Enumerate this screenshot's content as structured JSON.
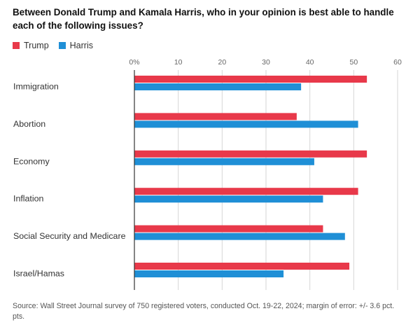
{
  "title": "Between Donald Trump and Kamala Harris, who in your opinion is best able to handle each of the following issues?",
  "source": "Source: Wall Street Journal survey of 750 registered voters, conducted Oct. 19-22, 2024; margin of error: +/- 3.6 pct. pts.",
  "colors": {
    "trump": "#e8394a",
    "harris": "#1f8fd6",
    "axis": "#333333",
    "grid": "#d6d6d6",
    "tick": "#666666"
  },
  "chart_data": {
    "type": "bar",
    "orientation": "horizontal",
    "title": "Between Donald Trump and Kamala Harris, who in your opinion is best able to handle each of the following issues?",
    "categories": [
      "Immigration",
      "Abortion",
      "Economy",
      "Inflation",
      "Social Security and Medicare",
      "Israel/Hamas"
    ],
    "series": [
      {
        "name": "Trump",
        "values": [
          53,
          37,
          53,
          51,
          43,
          49
        ]
      },
      {
        "name": "Harris",
        "values": [
          38,
          51,
          41,
          43,
          48,
          34
        ]
      }
    ],
    "xlim": [
      0,
      60
    ],
    "xticks": [
      "0%",
      "10",
      "20",
      "30",
      "40",
      "50",
      "60"
    ],
    "grid": true,
    "legend_position": "top-left"
  }
}
